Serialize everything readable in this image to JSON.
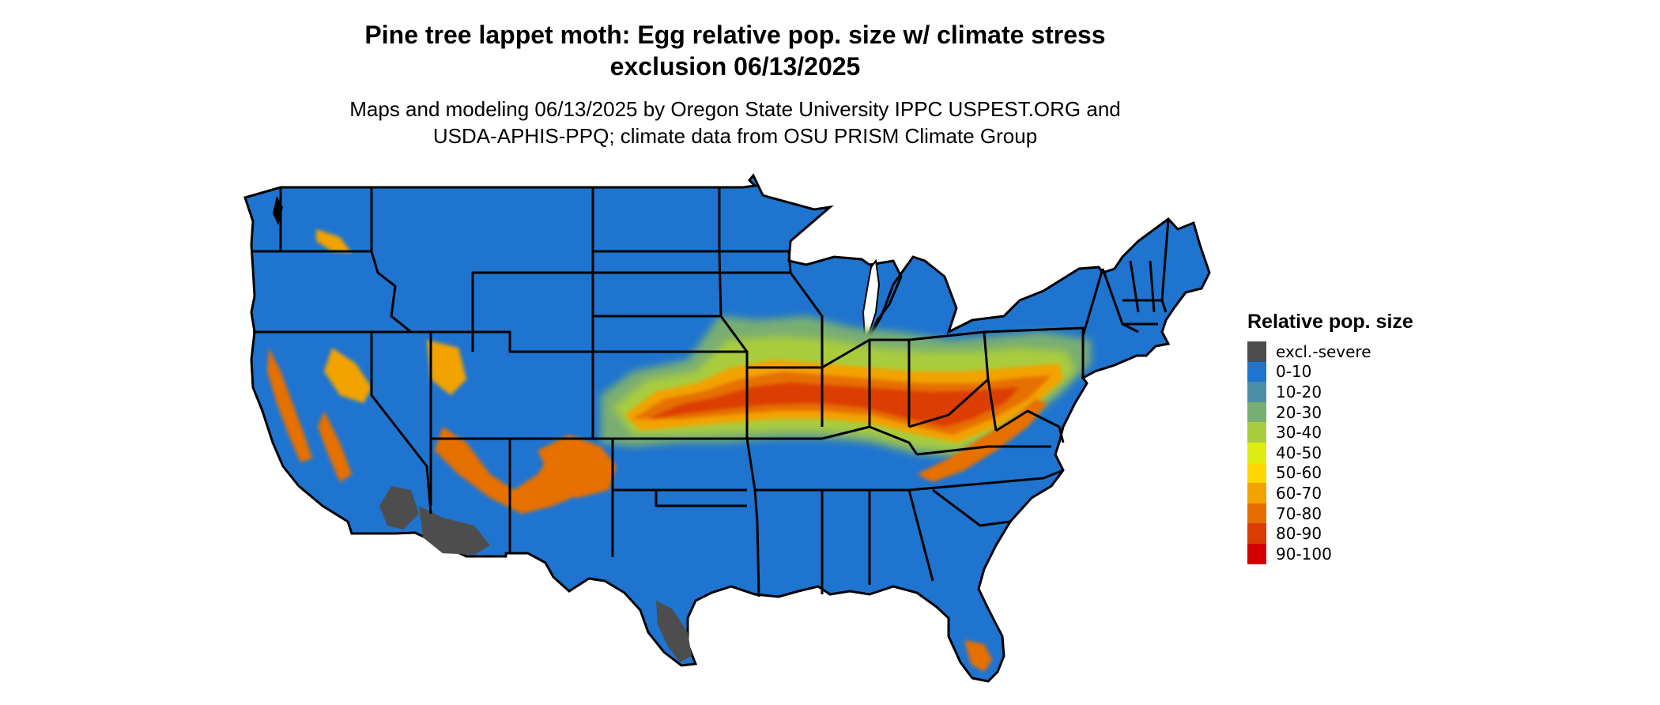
{
  "title": {
    "line1": "Pine tree lappet moth: Egg relative pop. size w/ climate stress",
    "line2": "exclusion 06/13/2025"
  },
  "subtitle": {
    "line1": "Maps and modeling 06/13/2025 by Oregon State University IPPC USPEST.ORG and",
    "line2": "USDA-APHIS-PPQ; climate data from OSU PRISM Climate Group"
  },
  "legend": {
    "title": "Relative pop. size",
    "items": [
      {
        "label": "excl.-severe",
        "color": "#4d4d4d"
      },
      {
        "label": "0-10",
        "color": "#1f74cf"
      },
      {
        "label": "10-20",
        "color": "#4a8ea6"
      },
      {
        "label": "20-30",
        "color": "#79ae72"
      },
      {
        "label": "30-40",
        "color": "#a9cc3e"
      },
      {
        "label": "40-50",
        "color": "#dfec12"
      },
      {
        "label": "50-60",
        "color": "#ffd700"
      },
      {
        "label": "60-70",
        "color": "#f2a300"
      },
      {
        "label": "70-80",
        "color": "#e66f00"
      },
      {
        "label": "80-90",
        "color": "#dc3c00"
      },
      {
        "label": "90-100",
        "color": "#d30000"
      }
    ]
  },
  "map": {
    "region": "Contiguous United States",
    "base_color": "#1f74cf",
    "border_color": "#000000"
  }
}
